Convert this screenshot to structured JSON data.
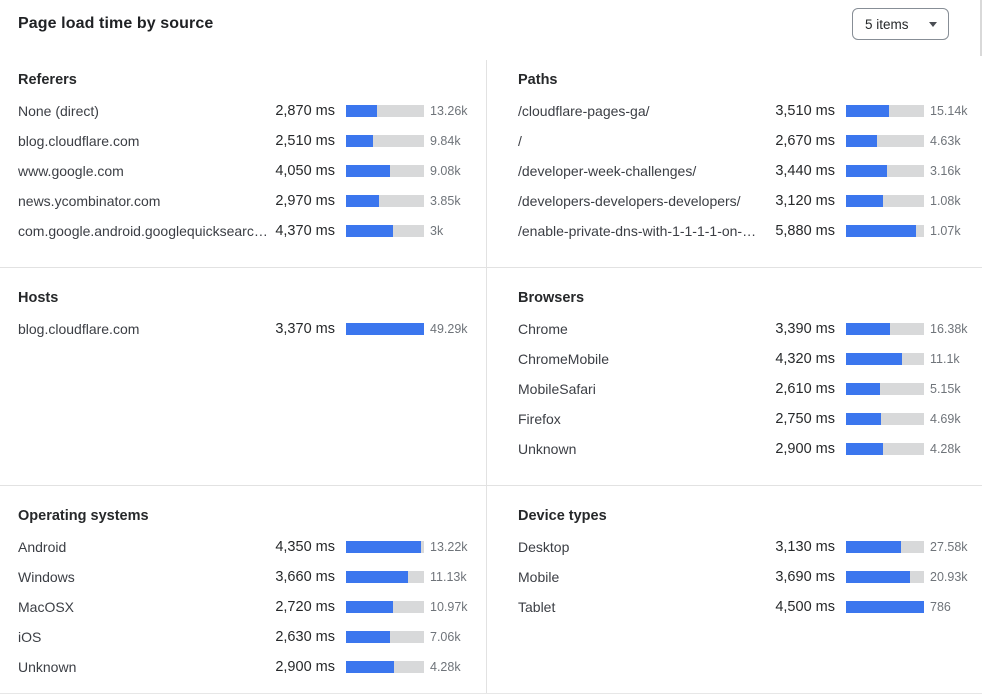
{
  "header": {
    "title": "Page load time by source",
    "items_dropdown": {
      "value": "5 items"
    }
  },
  "colors": {
    "bar_fill": "#3b76ee",
    "bar_track": "#d8d9da",
    "divider": "#e2e2e2"
  },
  "sections": [
    {
      "id": "referers",
      "title": "Referers",
      "rows": [
        {
          "label": "None (direct)",
          "ms": "2,870 ms",
          "fill_pct": 40,
          "count": "13.26k"
        },
        {
          "label": "blog.cloudflare.com",
          "ms": "2,510 ms",
          "fill_pct": 35,
          "count": "9.84k"
        },
        {
          "label": "www.google.com",
          "ms": "4,050 ms",
          "fill_pct": 56,
          "count": "9.08k"
        },
        {
          "label": "news.ycombinator.com",
          "ms": "2,970 ms",
          "fill_pct": 42,
          "count": "3.85k"
        },
        {
          "label": "com.google.android.googlequicksearc…",
          "ms": "4,370 ms",
          "fill_pct": 60,
          "count": "3k"
        }
      ]
    },
    {
      "id": "paths",
      "title": "Paths",
      "rows": [
        {
          "label": "/cloudflare-pages-ga/",
          "ms": "3,510 ms",
          "fill_pct": 55,
          "count": "15.14k"
        },
        {
          "label": "/",
          "ms": "2,670 ms",
          "fill_pct": 40,
          "count": "4.63k"
        },
        {
          "label": "/developer-week-challenges/",
          "ms": "3,440 ms",
          "fill_pct": 53,
          "count": "3.16k"
        },
        {
          "label": "/developers-developers-developers/",
          "ms": "3,120 ms",
          "fill_pct": 48,
          "count": "1.08k"
        },
        {
          "label": "/enable-private-dns-with-1-1-1-1-on-…",
          "ms": "5,880 ms",
          "fill_pct": 90,
          "count": "1.07k"
        }
      ]
    },
    {
      "id": "hosts",
      "title": "Hosts",
      "rows": [
        {
          "label": "blog.cloudflare.com",
          "ms": "3,370 ms",
          "fill_pct": 100,
          "count": "49.29k"
        }
      ]
    },
    {
      "id": "browsers",
      "title": "Browsers",
      "rows": [
        {
          "label": "Chrome",
          "ms": "3,390 ms",
          "fill_pct": 57,
          "count": "16.38k"
        },
        {
          "label": "ChromeMobile",
          "ms": "4,320 ms",
          "fill_pct": 72,
          "count": "11.1k"
        },
        {
          "label": "MobileSafari",
          "ms": "2,610 ms",
          "fill_pct": 44,
          "count": "5.15k"
        },
        {
          "label": "Firefox",
          "ms": "2,750 ms",
          "fill_pct": 45,
          "count": "4.69k"
        },
        {
          "label": "Unknown",
          "ms": "2,900 ms",
          "fill_pct": 48,
          "count": "4.28k"
        }
      ]
    },
    {
      "id": "operating-systems",
      "title": "Operating systems",
      "rows": [
        {
          "label": "Android",
          "ms": "4,350 ms",
          "fill_pct": 96,
          "count": "13.22k"
        },
        {
          "label": "Windows",
          "ms": "3,660 ms",
          "fill_pct": 79,
          "count": "11.13k"
        },
        {
          "label": "MacOSX",
          "ms": "2,720 ms",
          "fill_pct": 60,
          "count": "10.97k"
        },
        {
          "label": "iOS",
          "ms": "2,630 ms",
          "fill_pct": 57,
          "count": "7.06k"
        },
        {
          "label": "Unknown",
          "ms": "2,900 ms",
          "fill_pct": 62,
          "count": "4.28k"
        }
      ]
    },
    {
      "id": "device-types",
      "title": "Device types",
      "rows": [
        {
          "label": "Desktop",
          "ms": "3,130 ms",
          "fill_pct": 71,
          "count": "27.58k"
        },
        {
          "label": "Mobile",
          "ms": "3,690 ms",
          "fill_pct": 82,
          "count": "20.93k"
        },
        {
          "label": "Tablet",
          "ms": "4,500 ms",
          "fill_pct": 100,
          "count": "786"
        }
      ]
    }
  ]
}
